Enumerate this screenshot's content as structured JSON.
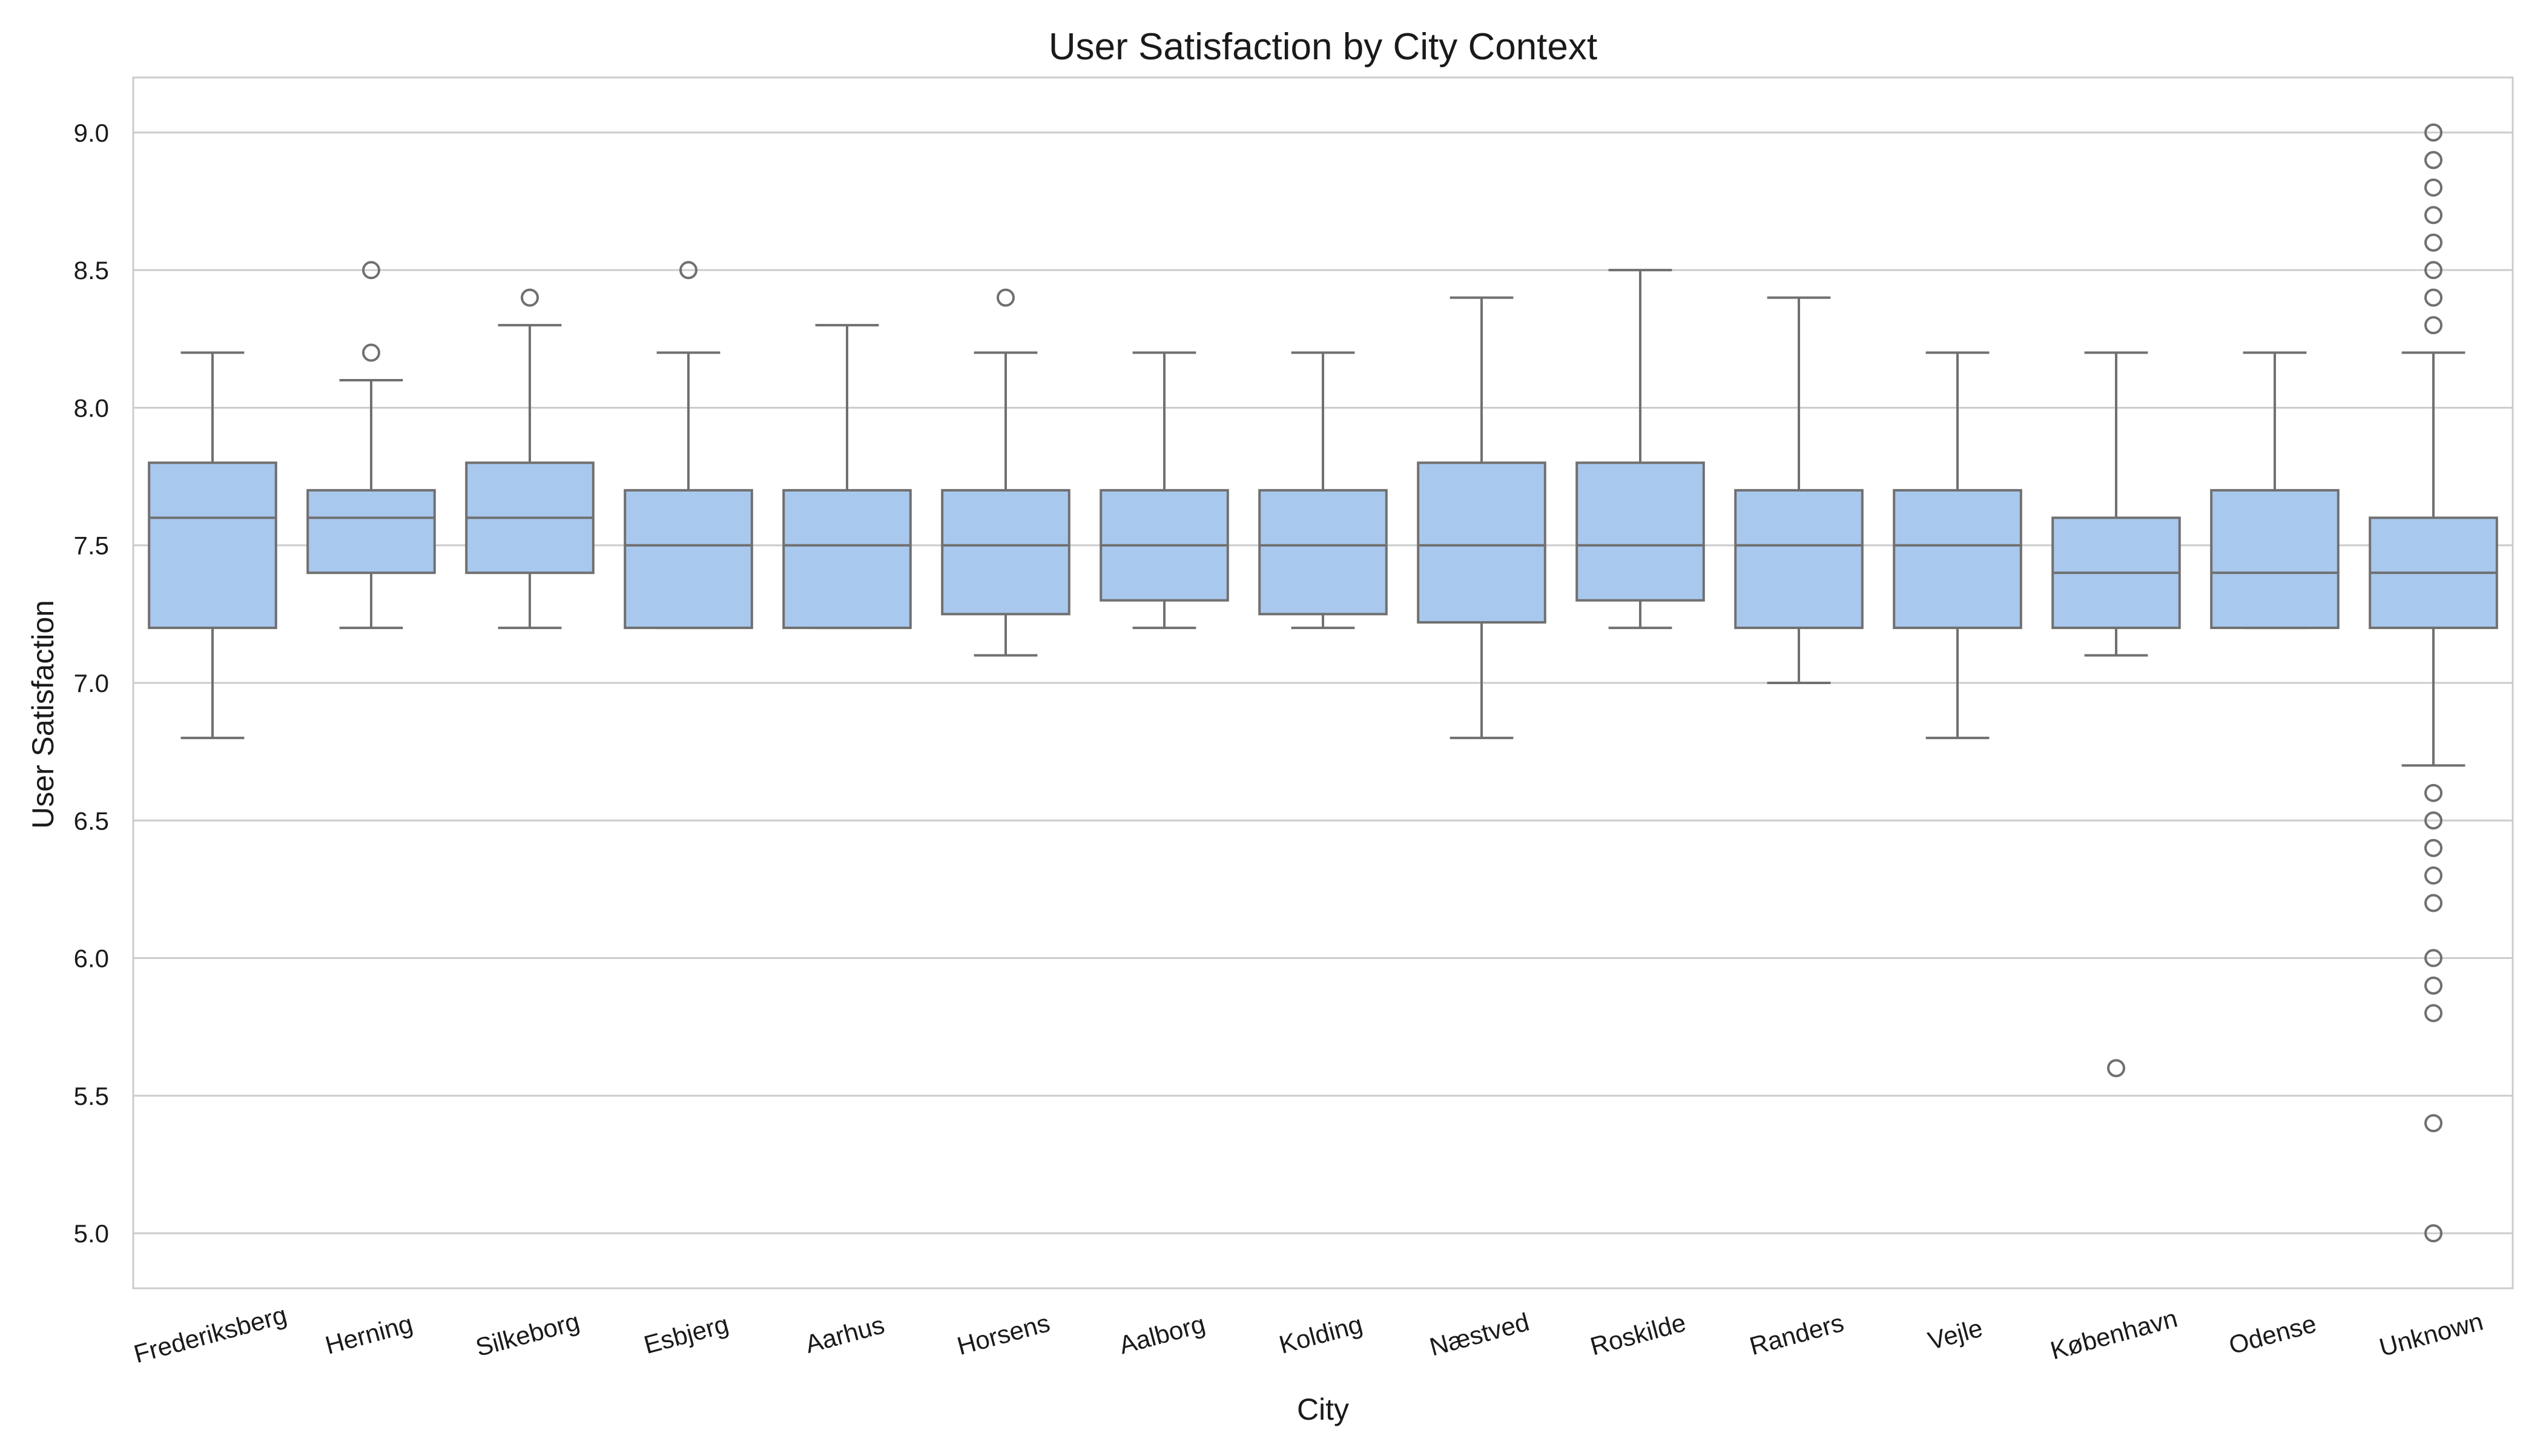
{
  "chart_data": {
    "type": "box",
    "title": "User Satisfaction by City Context",
    "xlabel": "City",
    "ylabel": "User Satisfaction",
    "ylim": [
      4.8,
      9.2
    ],
    "yticks": [
      5.0,
      5.5,
      6.0,
      6.5,
      7.0,
      7.5,
      8.0,
      8.5,
      9.0
    ],
    "ytick_labels": [
      "5.0",
      "5.5",
      "6.0",
      "6.5",
      "7.0",
      "7.5",
      "8.0",
      "8.5",
      "9.0"
    ],
    "grid": "horizontal",
    "colors": {
      "box_fill": "#a9c8ee",
      "box_edge": "#707070",
      "grid": "#cccccc",
      "frame": "#cccccc"
    },
    "categories": [
      "Frederiksberg",
      "Herning",
      "Silkeborg",
      "Esbjerg",
      "Aarhus",
      "Horsens",
      "Aalborg",
      "Kolding",
      "Næstved",
      "Roskilde",
      "Randers",
      "Vejle",
      "København",
      "Odense",
      "Unknown"
    ],
    "boxes": [
      {
        "category": "Frederiksberg",
        "whisker_low": 6.8,
        "q1": 7.2,
        "median": 7.6,
        "q3": 7.8,
        "whisker_high": 8.2,
        "outliers": []
      },
      {
        "category": "Herning",
        "whisker_low": 7.2,
        "q1": 7.4,
        "median": 7.6,
        "q3": 7.7,
        "whisker_high": 8.1,
        "outliers": [
          8.5,
          8.2
        ]
      },
      {
        "category": "Silkeborg",
        "whisker_low": 7.2,
        "q1": 7.4,
        "median": 7.6,
        "q3": 7.8,
        "whisker_high": 8.3,
        "outliers": [
          8.4
        ]
      },
      {
        "category": "Esbjerg",
        "whisker_low": 7.2,
        "q1": 7.2,
        "median": 7.5,
        "q3": 7.7,
        "whisker_high": 8.2,
        "outliers": [
          8.5
        ]
      },
      {
        "category": "Aarhus",
        "whisker_low": 7.2,
        "q1": 7.2,
        "median": 7.5,
        "q3": 7.7,
        "whisker_high": 8.3,
        "outliers": []
      },
      {
        "category": "Horsens",
        "whisker_low": 7.1,
        "q1": 7.25,
        "median": 7.5,
        "q3": 7.7,
        "whisker_high": 8.2,
        "outliers": [
          8.4
        ]
      },
      {
        "category": "Aalborg",
        "whisker_low": 7.2,
        "q1": 7.3,
        "median": 7.5,
        "q3": 7.7,
        "whisker_high": 8.2,
        "outliers": []
      },
      {
        "category": "Kolding",
        "whisker_low": 7.2,
        "q1": 7.25,
        "median": 7.5,
        "q3": 7.7,
        "whisker_high": 8.2,
        "outliers": []
      },
      {
        "category": "Næstved",
        "whisker_low": 6.8,
        "q1": 7.22,
        "median": 7.5,
        "q3": 7.8,
        "whisker_high": 8.4,
        "outliers": []
      },
      {
        "category": "Roskilde",
        "whisker_low": 7.2,
        "q1": 7.3,
        "median": 7.5,
        "q3": 7.8,
        "whisker_high": 8.5,
        "outliers": []
      },
      {
        "category": "Randers",
        "whisker_low": 7.0,
        "q1": 7.2,
        "median": 7.5,
        "q3": 7.7,
        "whisker_high": 8.4,
        "outliers": []
      },
      {
        "category": "Vejle",
        "whisker_low": 6.8,
        "q1": 7.2,
        "median": 7.5,
        "q3": 7.7,
        "whisker_high": 8.2,
        "outliers": []
      },
      {
        "category": "København",
        "whisker_low": 7.1,
        "q1": 7.2,
        "median": 7.4,
        "q3": 7.6,
        "whisker_high": 8.2,
        "outliers": [
          5.6
        ]
      },
      {
        "category": "Odense",
        "whisker_low": 7.2,
        "q1": 7.2,
        "median": 7.4,
        "q3": 7.7,
        "whisker_high": 8.2,
        "outliers": []
      },
      {
        "category": "Unknown",
        "whisker_low": 6.7,
        "q1": 7.2,
        "median": 7.4,
        "q3": 7.6,
        "whisker_high": 8.2,
        "outliers": [
          9.0,
          8.9,
          8.8,
          8.7,
          8.6,
          8.5,
          8.4,
          8.3,
          6.6,
          6.5,
          6.4,
          6.3,
          6.2,
          6.0,
          5.9,
          5.8,
          5.4,
          5.0
        ]
      }
    ]
  }
}
